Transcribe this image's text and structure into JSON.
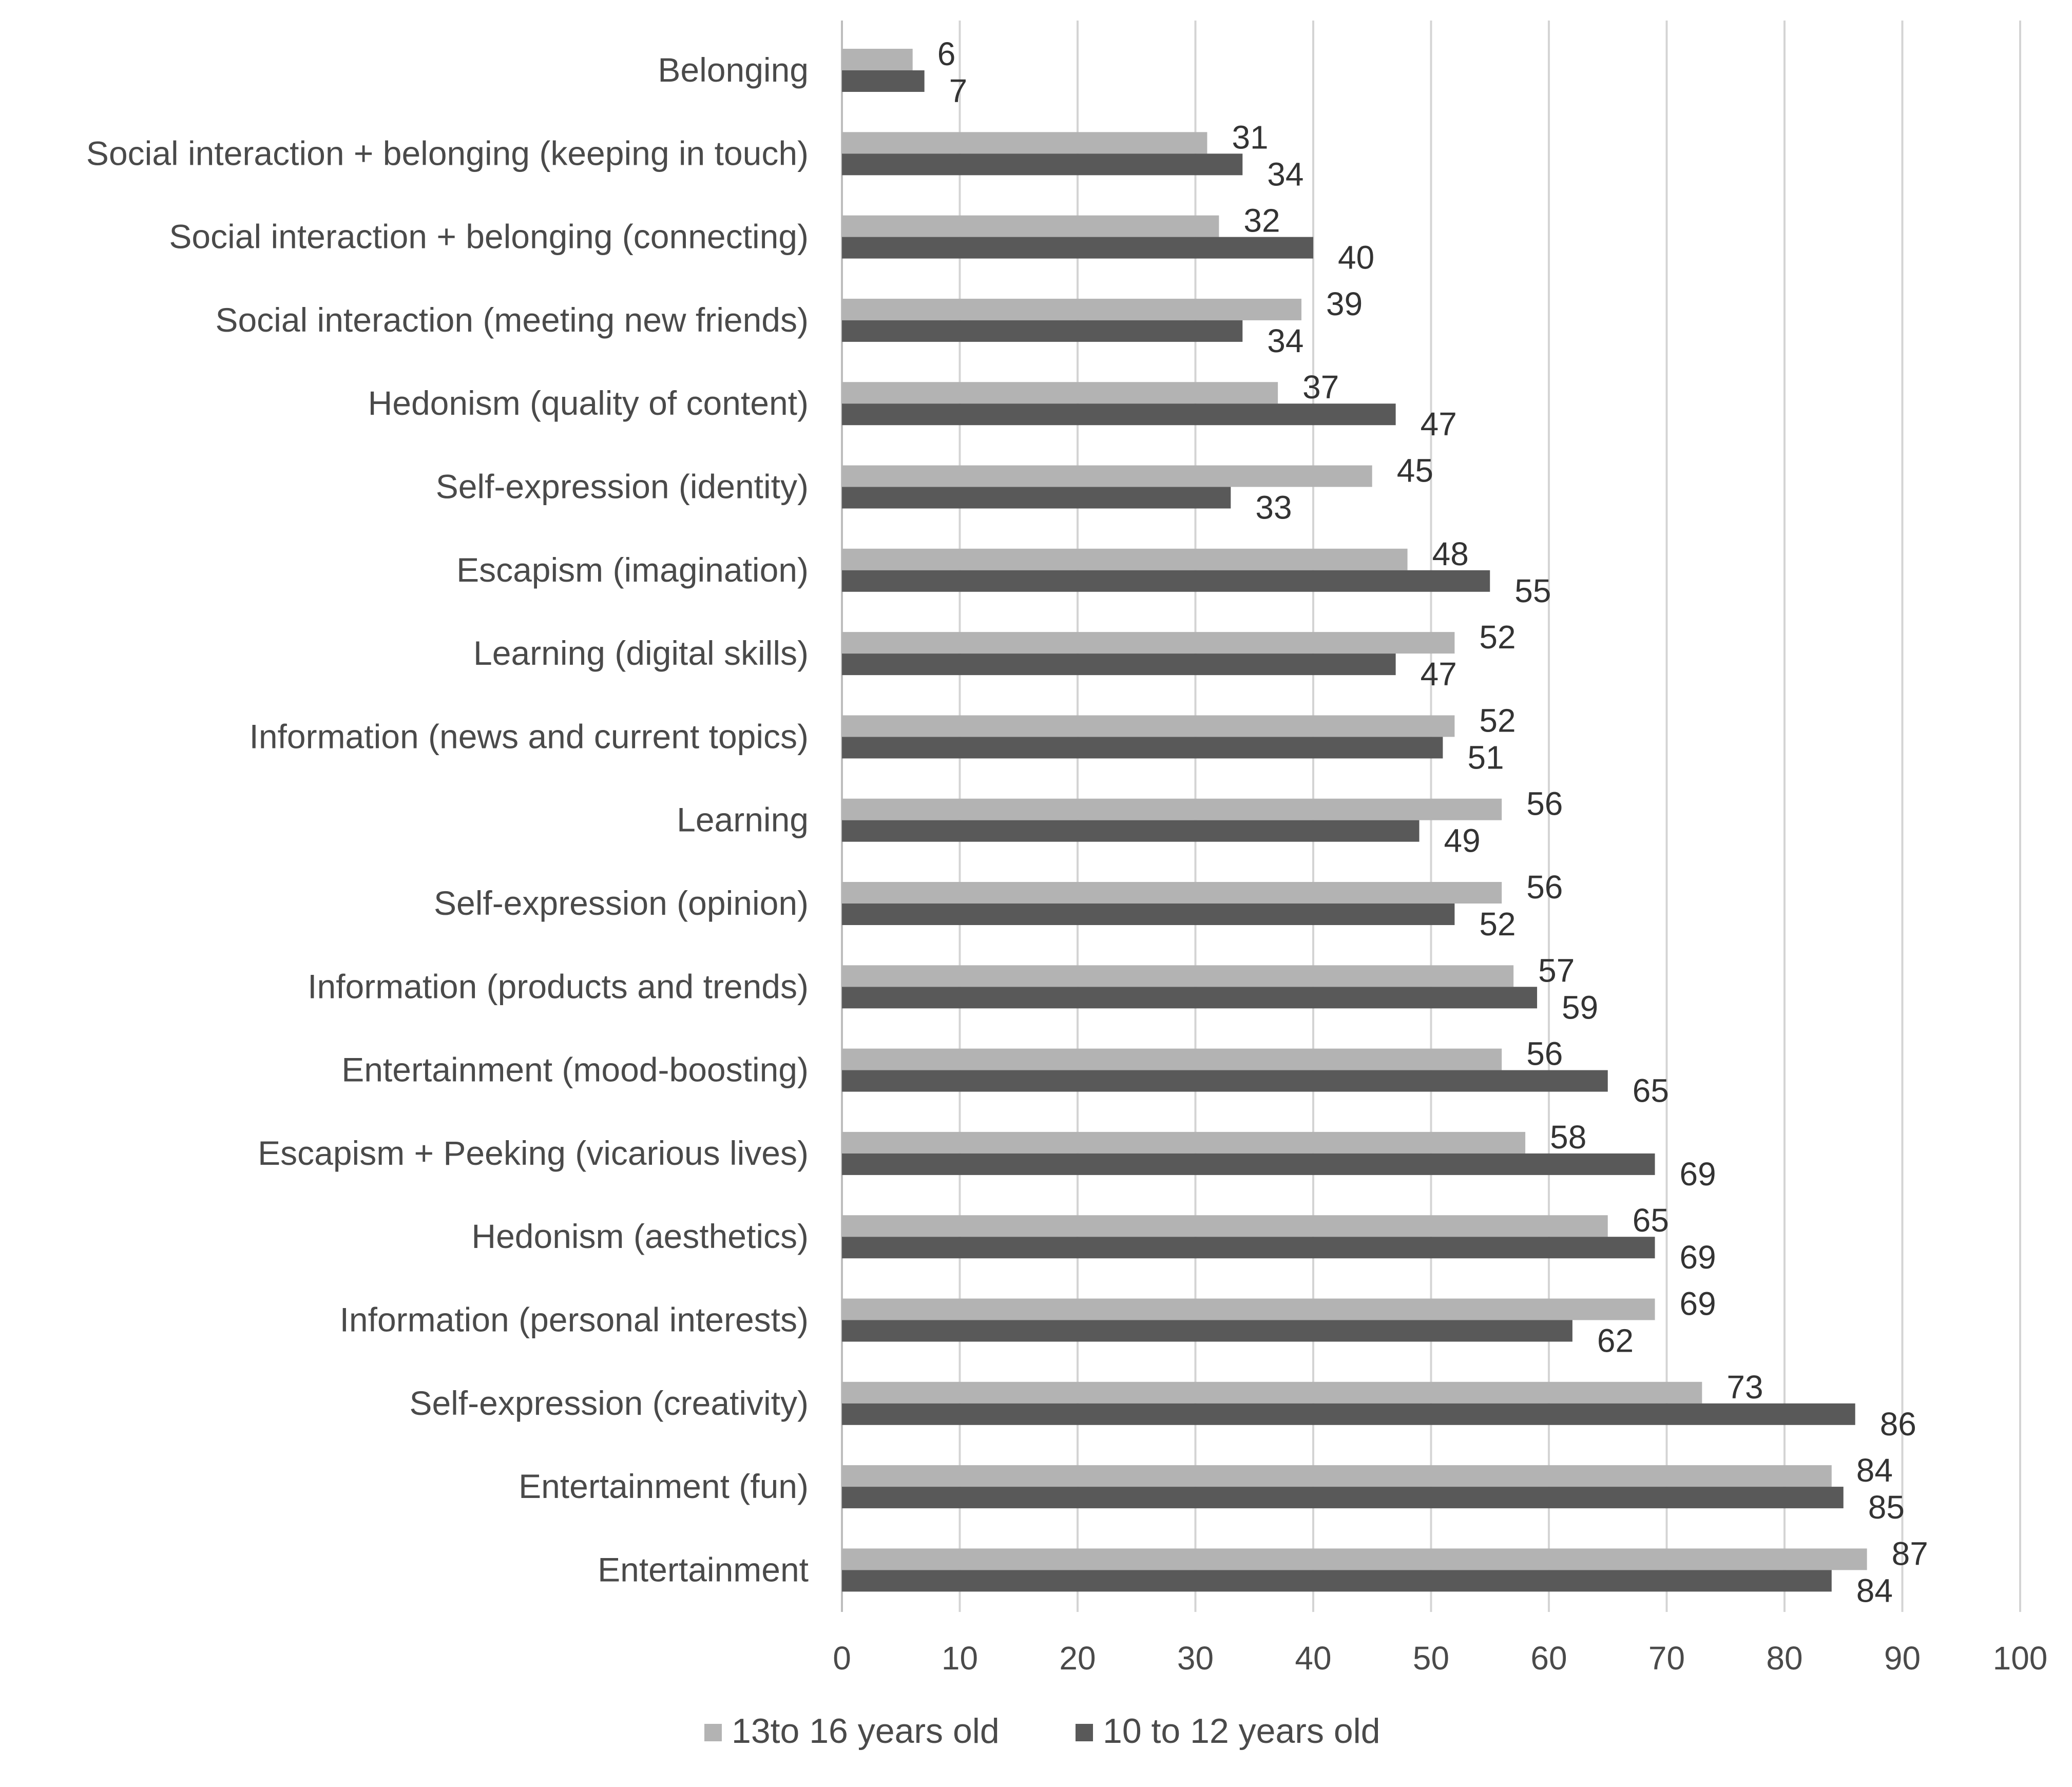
{
  "chart_data": {
    "type": "bar",
    "orientation": "horizontal",
    "categories": [
      "Belonging",
      "Social interaction + belonging (keeping in touch)",
      "Social interaction + belonging (connecting)",
      "Social interaction (meeting new friends)",
      "Hedonism (quality of content)",
      "Self-expression (identity)",
      "Escapism (imagination)",
      "Learning (digital skills)",
      "Information (news and current topics)",
      "Learning",
      "Self-expression (opinion)",
      "Information (products and trends)",
      "Entertainment (mood-boosting)",
      "Escapism + Peeking (vicarious lives)",
      "Hedonism (aesthetics)",
      "Information (personal interests)",
      "Self-expression (creativity)",
      "Entertainment (fun)",
      "Entertainment"
    ],
    "series": [
      {
        "name": "13to 16 years old",
        "color": "#b3b3b3",
        "values": [
          6,
          31,
          32,
          39,
          37,
          45,
          48,
          52,
          52,
          56,
          56,
          57,
          56,
          58,
          65,
          69,
          73,
          84,
          87
        ]
      },
      {
        "name": "10 to 12 years old",
        "color": "#595959",
        "values": [
          7,
          34,
          40,
          34,
          47,
          33,
          55,
          47,
          51,
          49,
          52,
          59,
          65,
          69,
          69,
          62,
          86,
          85,
          84
        ]
      }
    ],
    "xlim": [
      0,
      100
    ],
    "xticks": [
      0,
      10,
      20,
      30,
      40,
      50,
      60,
      70,
      80,
      90,
      100
    ],
    "title": "",
    "xlabel": "",
    "ylabel": "",
    "grid": true,
    "legend_position": "bottom"
  }
}
